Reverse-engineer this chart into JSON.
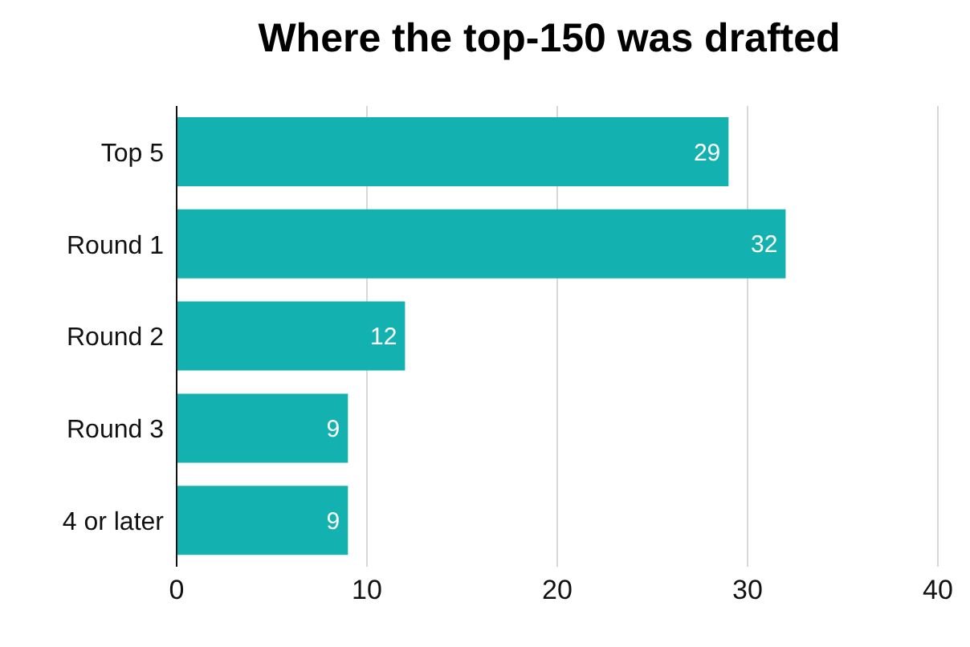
{
  "chart_data": {
    "type": "bar",
    "orientation": "horizontal",
    "title": "Where the top-150 was drafted",
    "categories": [
      "Top 5",
      "Round 1",
      "Round 2",
      "Round 3",
      "4 or later"
    ],
    "values": [
      29,
      32,
      12,
      9,
      9
    ],
    "color": "#14b1b1",
    "xlim": [
      0,
      40
    ],
    "xticks": [
      0,
      10,
      20,
      30,
      40
    ],
    "grid": "x",
    "data_labels": true
  }
}
